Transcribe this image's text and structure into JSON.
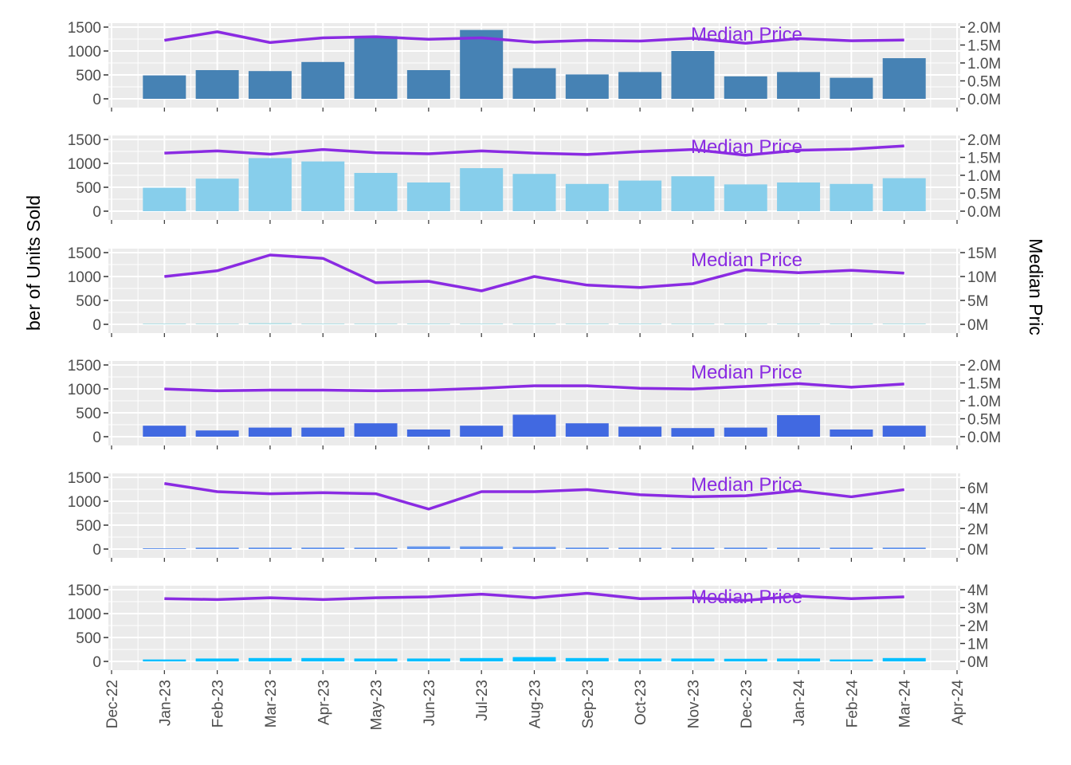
{
  "figure": {
    "ylabel_left": "ber of Units Sold",
    "ylabel_right": "Median Pric"
  },
  "colors": {
    "panel_bg": "#ebebeb",
    "grid": "#ffffff",
    "line": "#8a2be2",
    "tick_text": "#4d4d4d"
  },
  "chart_data": [
    {
      "type": "bar",
      "annotation": "Median Price",
      "bar_color": "#4682b4",
      "x": [
        "Jan-23",
        "Feb-23",
        "Mar-23",
        "Apr-23",
        "May-23",
        "Jun-23",
        "Jul-23",
        "Aug-23",
        "Sep-23",
        "Oct-23",
        "Nov-23",
        "Dec-23",
        "Jan-24",
        "Feb-24",
        "Mar-24"
      ],
      "units_sold": [
        490,
        600,
        580,
        770,
        1310,
        600,
        1440,
        640,
        510,
        560,
        1000,
        470,
        560,
        440,
        850
      ],
      "median_price": [
        1630000,
        1870000,
        1570000,
        1700000,
        1730000,
        1660000,
        1700000,
        1580000,
        1630000,
        1610000,
        1690000,
        1550000,
        1680000,
        1620000,
        1640000
      ],
      "ylim_left": [
        0,
        1500
      ],
      "yticks_left": [
        0,
        500,
        1000,
        1500
      ],
      "ylim_right": [
        0,
        2000000
      ],
      "yticks_right": [
        0,
        500000,
        1000000,
        1500000,
        2000000
      ],
      "yticklabels_right": [
        "0.0M",
        "0.5M",
        "1.0M",
        "1.5M",
        "2.0M"
      ]
    },
    {
      "type": "bar",
      "annotation": "Median Price",
      "bar_color": "#87ceeb",
      "x": [
        "Jan-23",
        "Feb-23",
        "Mar-23",
        "Apr-23",
        "May-23",
        "Jun-23",
        "Jul-23",
        "Aug-23",
        "Sep-23",
        "Oct-23",
        "Nov-23",
        "Dec-23",
        "Jan-24",
        "Feb-24",
        "Mar-24"
      ],
      "units_sold": [
        490,
        680,
        1110,
        1040,
        800,
        600,
        900,
        780,
        570,
        640,
        730,
        560,
        600,
        570,
        690
      ],
      "median_price": [
        1620000,
        1680000,
        1590000,
        1720000,
        1630000,
        1600000,
        1680000,
        1620000,
        1580000,
        1660000,
        1720000,
        1560000,
        1700000,
        1730000,
        1820000
      ],
      "ylim_left": [
        0,
        1500
      ],
      "yticks_left": [
        0,
        500,
        1000,
        1500
      ],
      "ylim_right": [
        0,
        2000000
      ],
      "yticks_right": [
        0,
        500000,
        1000000,
        1500000,
        2000000
      ],
      "yticklabels_right": [
        "0.0M",
        "0.5M",
        "1.0M",
        "1.5M",
        "2.0M"
      ]
    },
    {
      "type": "bar",
      "annotation": "Median Price",
      "bar_color": "#b0e0e6",
      "x": [
        "Jan-23",
        "Feb-23",
        "Mar-23",
        "Apr-23",
        "May-23",
        "Jun-23",
        "Jul-23",
        "Aug-23",
        "Sep-23",
        "Oct-23",
        "Nov-23",
        "Dec-23",
        "Jan-24",
        "Feb-24",
        "Mar-24"
      ],
      "units_sold": [
        3,
        12,
        25,
        10,
        8,
        8,
        4,
        12,
        5,
        10,
        12,
        4,
        4,
        12,
        4
      ],
      "median_price": [
        10000000,
        11200000,
        14500000,
        13800000,
        8700000,
        9000000,
        7000000,
        10000000,
        8200000,
        7700000,
        8500000,
        11400000,
        10800000,
        11300000,
        10700000
      ],
      "ylim_left": [
        0,
        1500
      ],
      "yticks_left": [
        0,
        500,
        1000,
        1500
      ],
      "ylim_right": [
        0,
        15000000
      ],
      "yticks_right": [
        0,
        5000000,
        10000000,
        15000000
      ],
      "yticklabels_right": [
        "0M",
        "5M",
        "10M",
        "15M"
      ]
    },
    {
      "type": "bar",
      "annotation": "Median Price",
      "bar_color": "#4169e1",
      "x": [
        "Jan-23",
        "Feb-23",
        "Mar-23",
        "Apr-23",
        "May-23",
        "Jun-23",
        "Jul-23",
        "Aug-23",
        "Sep-23",
        "Oct-23",
        "Nov-23",
        "Dec-23",
        "Jan-24",
        "Feb-24",
        "Mar-24"
      ],
      "units_sold": [
        230,
        130,
        190,
        190,
        280,
        150,
        230,
        460,
        280,
        210,
        180,
        190,
        450,
        150,
        230
      ],
      "median_price": [
        1330000,
        1280000,
        1300000,
        1300000,
        1280000,
        1300000,
        1350000,
        1420000,
        1420000,
        1350000,
        1330000,
        1400000,
        1480000,
        1380000,
        1470000
      ],
      "ylim_left": [
        0,
        1500
      ],
      "yticks_left": [
        0,
        500,
        1000,
        1500
      ],
      "ylim_right": [
        0,
        2000000
      ],
      "yticks_right": [
        0,
        500000,
        1000000,
        1500000,
        2000000
      ],
      "yticklabels_right": [
        "0.0M",
        "0.5M",
        "1.0M",
        "1.5M",
        "2.0M"
      ]
    },
    {
      "type": "bar",
      "annotation": "Median Price",
      "bar_color": "#6495ed",
      "x": [
        "Jan-23",
        "Feb-23",
        "Mar-23",
        "Apr-23",
        "May-23",
        "Jun-23",
        "Jul-23",
        "Aug-23",
        "Sep-23",
        "Oct-23",
        "Nov-23",
        "Dec-23",
        "Jan-24",
        "Feb-24",
        "Mar-24"
      ],
      "units_sold": [
        15,
        30,
        30,
        30,
        30,
        55,
        55,
        45,
        30,
        30,
        30,
        30,
        30,
        30,
        30
      ],
      "median_price": [
        6400000,
        5600000,
        5400000,
        5500000,
        5400000,
        3900000,
        5600000,
        5600000,
        5800000,
        5300000,
        5100000,
        5200000,
        5700000,
        5100000,
        5800000
      ],
      "ylim_left": [
        0,
        1500
      ],
      "yticks_left": [
        0,
        500,
        1000,
        1500
      ],
      "ylim_right": [
        0,
        7000000
      ],
      "yticks_right": [
        0,
        2000000,
        4000000,
        6000000
      ],
      "yticklabels_right": [
        "0M",
        "2M",
        "4M",
        "6M"
      ]
    },
    {
      "type": "bar",
      "annotation": "Median Price",
      "bar_color": "#00bfff",
      "x": [
        "Jan-23",
        "Feb-23",
        "Mar-23",
        "Apr-23",
        "May-23",
        "Jun-23",
        "Jul-23",
        "Aug-23",
        "Sep-23",
        "Oct-23",
        "Nov-23",
        "Dec-23",
        "Jan-24",
        "Feb-24",
        "Mar-24"
      ],
      "units_sold": [
        40,
        60,
        70,
        70,
        60,
        60,
        70,
        90,
        70,
        60,
        60,
        55,
        60,
        40,
        70
      ],
      "median_price": [
        3500000,
        3450000,
        3550000,
        3450000,
        3550000,
        3600000,
        3750000,
        3550000,
        3800000,
        3500000,
        3550000,
        3400000,
        3650000,
        3500000,
        3600000
      ],
      "ylim_left": [
        0,
        1500
      ],
      "yticks_left": [
        0,
        500,
        1000,
        1500
      ],
      "ylim_right": [
        0,
        4000000
      ],
      "yticks_right": [
        0,
        1000000,
        2000000,
        3000000,
        4000000
      ],
      "yticklabels_right": [
        "0M",
        "1M",
        "2M",
        "3M",
        "4M"
      ]
    }
  ],
  "x_axis": {
    "tick_labels": [
      "Dec-22",
      "Jan-23",
      "Feb-23",
      "Mar-23",
      "Apr-23",
      "May-23",
      "Jun-23",
      "Jul-23",
      "Aug-23",
      "Sep-23",
      "Oct-23",
      "Nov-23",
      "Dec-23",
      "Jan-24",
      "Feb-24",
      "Mar-24",
      "Apr-24"
    ],
    "range": [
      "Dec-22",
      "Apr-24"
    ]
  }
}
